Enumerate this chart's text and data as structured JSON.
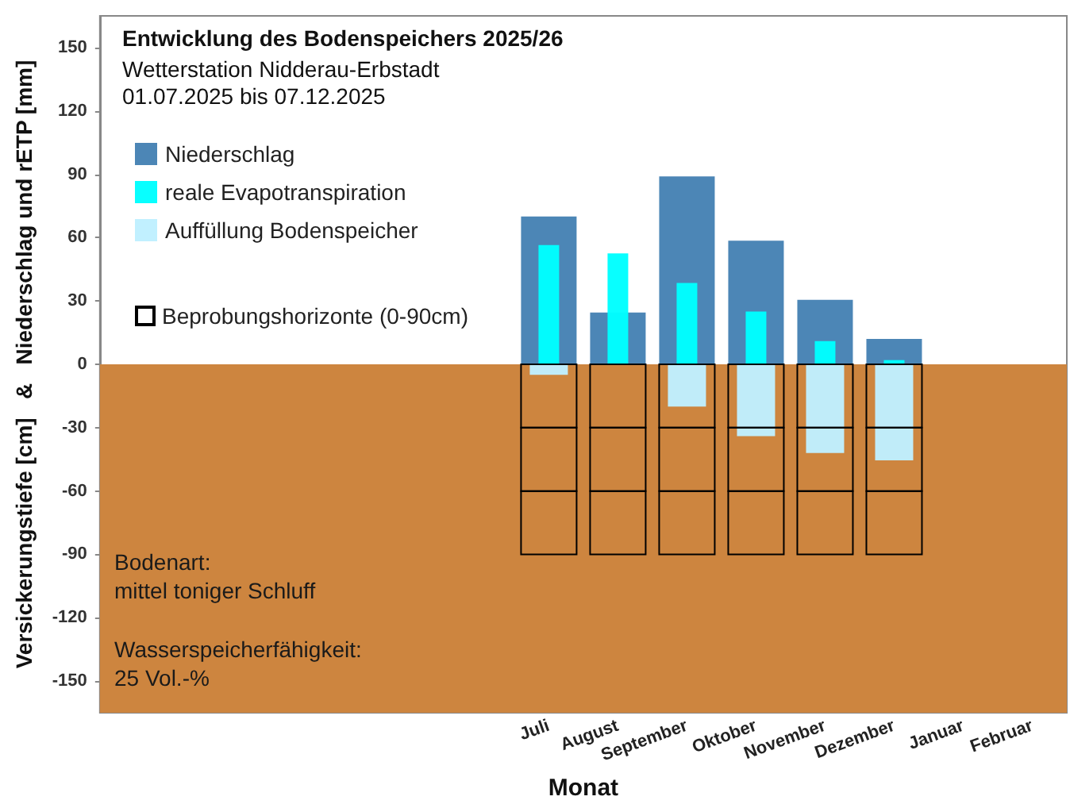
{
  "chart_data": {
    "type": "bar",
    "title": "Entwicklung des Bodenspeichers 2025/26",
    "subtitle": "Wetterstation Nidderau-Erbstadt\n01.07.2025 bis 07.12.2025",
    "xlabel": "Monat",
    "ylabel": "Versickerungstiefe [cm]   &   Niederschlag und rETP [mm]",
    "categories": [
      null,
      null,
      null,
      null,
      null,
      null,
      "Juli",
      "August",
      "September",
      "Oktober",
      "November",
      "Dezember",
      "Januar",
      "Februar"
    ],
    "series": [
      {
        "name": "Niederschlag",
        "color": "#4682b4",
        "values": [
          null,
          null,
          null,
          null,
          null,
          null,
          70,
          24.5,
          89,
          58.5,
          30.5,
          12,
          null,
          null
        ]
      },
      {
        "name": "reale Evapotranspiration",
        "color": "#00ffff",
        "values": [
          null,
          null,
          null,
          null,
          null,
          null,
          56.5,
          52.5,
          38.5,
          25,
          11,
          2,
          null,
          null
        ]
      },
      {
        "name": "Auffüllung Bodenspeicher",
        "color": "#bfefff",
        "values": [
          null,
          null,
          null,
          null,
          null,
          null,
          -5,
          null,
          -20,
          -34,
          -42,
          -45.5,
          null,
          null
        ]
      },
      {
        "name": "Beprobungshorizonte (0-90cm)",
        "line_style": "solid",
        "color": "#000000",
        "values": [
          null,
          null,
          null,
          null,
          null,
          null,
          -30,
          -30,
          -30,
          -30,
          -30,
          -30,
          null,
          null
        ],
        "base": [
          null,
          null,
          null,
          null,
          null,
          null,
          0,
          0,
          0,
          0,
          0,
          0,
          null,
          null
        ]
      },
      {
        "line_style": "solid",
        "color": "#000000",
        "values": [
          null,
          null,
          null,
          null,
          null,
          null,
          -30,
          -30,
          -30,
          -30,
          -30,
          -30,
          null,
          null
        ],
        "base": [
          null,
          null,
          null,
          null,
          null,
          null,
          -30,
          -30,
          -30,
          -30,
          -30,
          -30,
          null,
          null
        ]
      },
      {
        "line_style": "solid",
        "color": "#000000",
        "values": [
          null,
          null,
          null,
          null,
          null,
          null,
          -30,
          -30,
          -30,
          -30,
          -30,
          -30,
          null,
          null
        ],
        "base": [
          null,
          null,
          null,
          null,
          null,
          null,
          -60,
          -60,
          -60,
          -60,
          -60,
          -60,
          null,
          null
        ]
      }
    ],
    "ylim": [
      -165,
      165
    ],
    "yticks": [
      -150,
      -120,
      -90,
      -60,
      -30,
      0,
      30,
      60,
      90,
      120,
      150
    ],
    "bands": [
      {
        "axis": "y",
        "from": -165,
        "to": 0,
        "color": "#cd853f"
      }
    ],
    "annotations": [
      "Bodenart:\nmittel toniger Schluff",
      "Wasserspeicherfähigkeit:\n25 Vol.-%"
    ],
    "legend": "top left",
    "grid": false
  }
}
